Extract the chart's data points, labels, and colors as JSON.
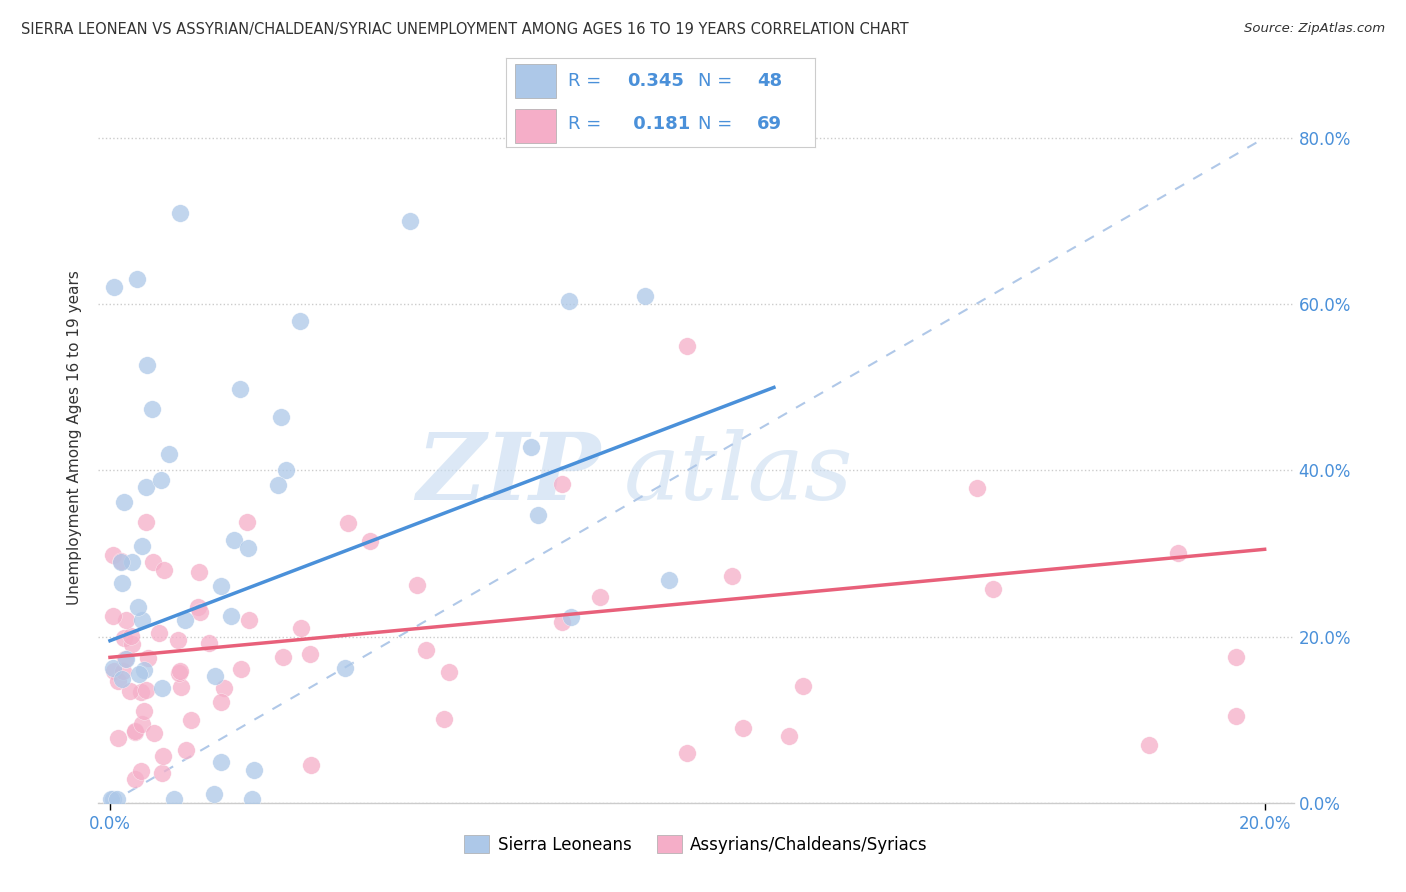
{
  "title": "SIERRA LEONEAN VS ASSYRIAN/CHALDEAN/SYRIAC UNEMPLOYMENT AMONG AGES 16 TO 19 YEARS CORRELATION CHART",
  "source": "Source: ZipAtlas.com",
  "ylabel": "Unemployment Among Ages 16 to 19 years",
  "legend1_label": "Sierra Leoneans",
  "legend2_label": "Assyrians/Chaldeans/Syriacs",
  "R1": 0.345,
  "N1": 48,
  "R2": 0.181,
  "N2": 69,
  "color1": "#adc8e8",
  "color2": "#f5aec8",
  "trendline1_color": "#4a90d9",
  "trendline2_color": "#e8607a",
  "trendline_ref_color": "#b0c8e8",
  "background_color": "#ffffff",
  "watermark_zip": "ZIP",
  "watermark_atlas": "atlas",
  "xlim": [
    0.0,
    0.2
  ],
  "ylim": [
    0.0,
    0.88
  ],
  "ytick_positions": [
    0.0,
    0.2,
    0.4,
    0.6,
    0.8
  ],
  "ytick_labels": [
    "0.0%",
    "20.0%",
    "40.0%",
    "60.0%",
    "80.0%"
  ],
  "xtick_left": "0.0%",
  "xtick_right": "20.0%",
  "tick_color": "#4a90d9",
  "text_color": "#333333"
}
